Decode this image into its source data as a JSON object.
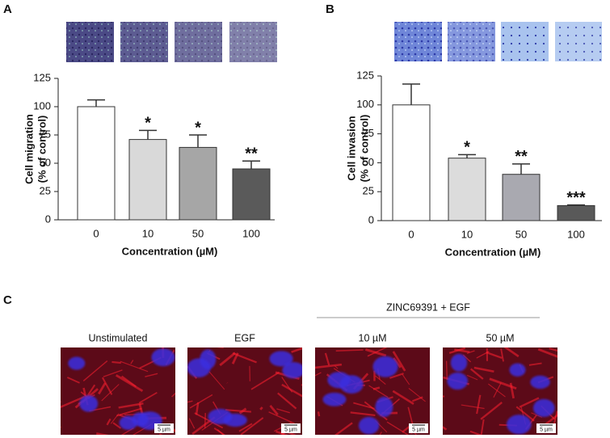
{
  "panel_labels": [
    "A",
    "B",
    "C"
  ],
  "chart_data": [
    {
      "type": "bar",
      "categories": [
        "0",
        "10",
        "50",
        "100"
      ],
      "values": [
        100,
        71,
        64,
        45
      ],
      "errors": [
        6,
        8,
        11,
        7
      ],
      "annotations": [
        null,
        "*",
        "*",
        "**"
      ],
      "colors": [
        "#ffffff",
        "#d9d9d9",
        "#a6a6a6",
        "#5a5a5a"
      ],
      "ylim": [
        0,
        125
      ],
      "yticks": [
        0,
        25,
        50,
        75,
        100,
        125
      ],
      "xlabel": "Concentration (µM)",
      "ylabel": [
        "Cell migration",
        "(% of control)"
      ]
    },
    {
      "type": "bar",
      "categories": [
        "0",
        "10",
        "50",
        "100"
      ],
      "values": [
        100,
        54,
        40,
        13
      ],
      "errors": [
        18,
        3,
        9,
        0.5
      ],
      "annotations": [
        null,
        "*",
        "**",
        "***"
      ],
      "colors": [
        "#ffffff",
        "#dcdcdc",
        "#a9a9b0",
        "#595959"
      ],
      "ylim": [
        0,
        125
      ],
      "yticks": [
        0,
        25,
        50,
        75,
        100,
        125
      ],
      "xlabel": "Concentration (µM)",
      "ylabel": [
        "Cell invasion",
        "(% of control)"
      ]
    }
  ],
  "panel_c": {
    "group_label": "ZINC69391 + EGF",
    "images": [
      {
        "label": "Unstimulated",
        "scale_bar": "5 µm"
      },
      {
        "label": "EGF",
        "scale_bar": "5 µm"
      },
      {
        "label": "10  µM",
        "scale_bar": "5 µm"
      },
      {
        "label": "50  µM",
        "scale_bar": "5 µm"
      }
    ]
  }
}
